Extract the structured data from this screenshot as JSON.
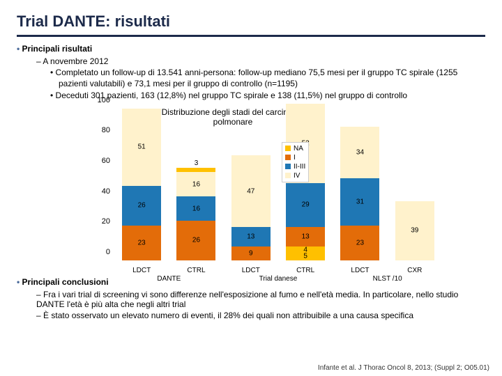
{
  "title": "Trial DANTE: risultati",
  "section1_heading": "Principali risultati",
  "sub1": "A novembre 2012",
  "sub1a": "Completato un follow-up di 13.541 anni-persona: follow-up mediano 75,5 mesi per il gruppo TC spirale (1255 pazienti valutabili) e 73,1 mesi per il gruppo di controllo (n=1195)",
  "sub1b": "Deceduti 301 pazienti, 163 (12,8%) nel gruppo TC spirale e 138 (11,5%) nel gruppo di controllo",
  "chart": {
    "title": "Distribuzione degli stadi del carcinoma polmonare",
    "ymax": 100,
    "ytick_step": 20,
    "yticks": [
      0,
      20,
      40,
      60,
      80,
      100
    ],
    "colors": {
      "NA": "#ffc000",
      "I": "#e36c09",
      "II_III": "#1f77b4",
      "IV": "#fff2cc"
    },
    "legend": [
      {
        "key": "NA",
        "label": "NA"
      },
      {
        "key": "I",
        "label": "I"
      },
      {
        "key": "II_III",
        "label": "II-III"
      },
      {
        "key": "IV",
        "label": "IV"
      }
    ],
    "bars": [
      {
        "x": "LDCT",
        "segs": [
          {
            "k": "IV",
            "v": 51,
            "out": false
          },
          {
            "k": "II_III",
            "v": 26,
            "out": false
          },
          {
            "k": "I",
            "v": 23,
            "out": false
          }
        ]
      },
      {
        "x": "CTRL",
        "segs": [
          {
            "k": "NA",
            "v": 3,
            "out": true
          },
          {
            "k": "IV",
            "v": 16,
            "out": false
          },
          {
            "k": "II_III",
            "v": 16,
            "out": false
          },
          {
            "k": "I",
            "v": 26,
            "out": false
          }
        ]
      },
      {
        "x": "LDCT",
        "segs": [
          {
            "k": "IV",
            "v": 47,
            "out": false
          },
          {
            "k": "II_III",
            "v": 13,
            "out": false
          },
          {
            "k": "I",
            "v": 9,
            "out": false
          }
        ]
      },
      {
        "x": "CTRL",
        "segs": [
          {
            "k": "IV",
            "v": 52,
            "out": false
          },
          {
            "k": "II_III",
            "v": 29,
            "out": false
          },
          {
            "k": "I",
            "v": 13,
            "out": false
          },
          {
            "k": "NA",
            "v": 4,
            "out": false
          },
          {
            "k": "NA",
            "v": 5,
            "out": false
          }
        ]
      },
      {
        "x": "LDCT",
        "segs": [
          {
            "k": "IV",
            "v": 34,
            "out": false
          },
          {
            "k": "II_III",
            "v": 31,
            "out": false
          },
          {
            "k": "I",
            "v": 23,
            "out": false
          }
        ]
      },
      {
        "x": "CXR",
        "segs": [
          {
            "k": "IV",
            "v": 39,
            "out": false
          }
        ]
      }
    ],
    "group_labels": [
      {
        "label": "DANTE",
        "cols": [
          0,
          1
        ]
      },
      {
        "label": "Trial danese",
        "cols": [
          2,
          3
        ]
      },
      {
        "label": "NLST /10",
        "cols": [
          4,
          5
        ]
      }
    ]
  },
  "section2_heading": "Principali conclusioni",
  "concl1": "Fra i vari trial di screening vi sono differenze nell'esposizione al fumo e nell'età media. In particolare, nello studio DANTE l'età è più alta che negli altri trial",
  "concl2": "È stato osservato un elevato numero di eventi, il 28% dei quali non attribuibile a una causa specifica",
  "citation": "Infante et al. J Thorac Oncol 8, 2013; (Suppl 2; O05.01)"
}
